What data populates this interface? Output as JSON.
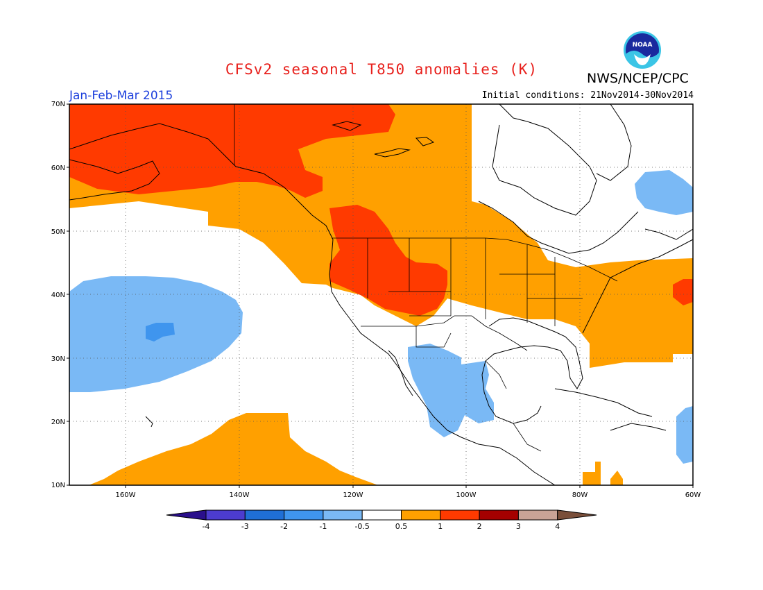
{
  "header": {
    "title": "CFSv2 seasonal T850 anomalies (K)",
    "org": "NWS/NCEP/CPC",
    "period": "Jan-Feb-Mar 2015",
    "initial_conditions": "Initial conditions: 21Nov2014-30Nov2014",
    "logo_text": "NOAA"
  },
  "axes": {
    "lat_labels": [
      "70N",
      "60N",
      "50N",
      "40N",
      "30N",
      "20N",
      "10N"
    ],
    "lon_labels": [
      "160W",
      "140W",
      "120W",
      "100W",
      "80W",
      "60W"
    ]
  },
  "colorbar": {
    "labels": [
      "-4",
      "-3",
      "-2",
      "-1",
      "-0.5",
      "0.5",
      "1",
      "2",
      "3",
      "4"
    ],
    "colors": [
      "#2a0f8c",
      "#4c3ccf",
      "#1f6fd6",
      "#3f95ee",
      "#7ab9f5",
      "#ffffff",
      "#ffa000",
      "#ff3a00",
      "#a50000",
      "#c9a396",
      "#7a4f3a"
    ]
  },
  "legend_colors": {
    "warm_1": "#ffa000",
    "warm_2": "#ff3a00",
    "cool_1": "#7ab9f5",
    "cool_2": "#3f95ee"
  }
}
